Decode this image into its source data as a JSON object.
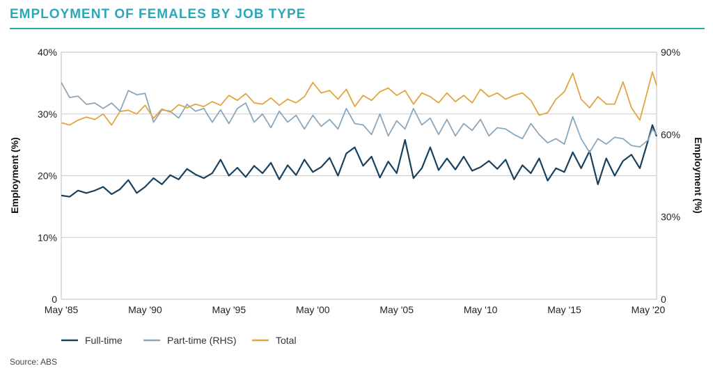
{
  "header": {
    "title": "EMPLOYMENT OF FEMALES BY JOB TYPE"
  },
  "footer": {
    "source": "Source: ABS"
  },
  "colors": {
    "full_time": "#17415e",
    "part_time": "#8aa7bc",
    "total": "#e1a53f",
    "grid": "#cccccc",
    "accent": "#2aa8b8"
  },
  "chart_data": {
    "type": "line",
    "ylabel_left": "Employment (%)",
    "ylabel_right": "Employment (%)",
    "left_ticks": [
      "0",
      "10%",
      "20%",
      "30%",
      "40%"
    ],
    "right_ticks": [
      "0",
      "30%",
      "60%",
      "90%"
    ],
    "x_ticks": [
      {
        "label": "May '85",
        "year": 1985
      },
      {
        "label": "May '90",
        "year": 1990
      },
      {
        "label": "May '95",
        "year": 1995
      },
      {
        "label": "May '00",
        "year": 2000
      },
      {
        "label": "May '05",
        "year": 2005
      },
      {
        "label": "May '10",
        "year": 2010
      },
      {
        "label": "May '15",
        "year": 2015
      },
      {
        "label": "May '20",
        "year": 2020
      }
    ],
    "ylim_left": [
      0,
      40
    ],
    "ylim_right": [
      0,
      90
    ],
    "xlim": [
      1985,
      2020.5
    ],
    "series": [
      {
        "name": "Full-time",
        "axis": "left",
        "points": [
          [
            1985,
            16.8
          ],
          [
            1985.5,
            16.6
          ],
          [
            1986,
            17.6
          ],
          [
            1986.5,
            17.2
          ],
          [
            1987,
            17.6
          ],
          [
            1987.5,
            18.2
          ],
          [
            1988,
            17.0
          ],
          [
            1988.5,
            17.8
          ],
          [
            1989,
            19.3
          ],
          [
            1989.5,
            17.2
          ],
          [
            1990,
            18.2
          ],
          [
            1990.5,
            19.6
          ],
          [
            1991,
            18.6
          ],
          [
            1991.5,
            20.1
          ],
          [
            1992,
            19.4
          ],
          [
            1992.5,
            21.1
          ],
          [
            1993,
            20.2
          ],
          [
            1993.5,
            19.6
          ],
          [
            1994,
            20.4
          ],
          [
            1994.5,
            22.6
          ],
          [
            1995,
            20.0
          ],
          [
            1995.5,
            21.3
          ],
          [
            1996,
            19.8
          ],
          [
            1996.5,
            21.6
          ],
          [
            1997,
            20.4
          ],
          [
            1997.5,
            22.1
          ],
          [
            1998,
            19.4
          ],
          [
            1998.5,
            21.7
          ],
          [
            1999,
            20.1
          ],
          [
            1999.5,
            22.6
          ],
          [
            2000,
            20.6
          ],
          [
            2000.5,
            21.4
          ],
          [
            2001,
            22.9
          ],
          [
            2001.5,
            20.0
          ],
          [
            2002,
            23.6
          ],
          [
            2002.5,
            24.6
          ],
          [
            2003,
            21.6
          ],
          [
            2003.5,
            23.1
          ],
          [
            2004,
            19.7
          ],
          [
            2004.5,
            22.3
          ],
          [
            2005,
            20.4
          ],
          [
            2005.5,
            25.8
          ],
          [
            2006,
            19.6
          ],
          [
            2006.5,
            21.2
          ],
          [
            2007,
            24.6
          ],
          [
            2007.5,
            20.9
          ],
          [
            2008,
            22.8
          ],
          [
            2008.5,
            21.0
          ],
          [
            2009,
            23.1
          ],
          [
            2009.5,
            20.8
          ],
          [
            2010,
            21.4
          ],
          [
            2010.5,
            22.4
          ],
          [
            2011,
            21.1
          ],
          [
            2011.5,
            22.6
          ],
          [
            2012,
            19.4
          ],
          [
            2012.5,
            21.7
          ],
          [
            2013,
            20.4
          ],
          [
            2013.5,
            22.8
          ],
          [
            2014,
            19.2
          ],
          [
            2014.5,
            21.2
          ],
          [
            2015,
            20.6
          ],
          [
            2015.5,
            23.8
          ],
          [
            2016,
            21.2
          ],
          [
            2016.5,
            24.0
          ],
          [
            2017,
            18.6
          ],
          [
            2017.5,
            22.8
          ],
          [
            2018,
            20.0
          ],
          [
            2018.5,
            22.4
          ],
          [
            2019,
            23.4
          ],
          [
            2019.5,
            21.2
          ],
          [
            2020,
            25.8
          ],
          [
            2020.25,
            28.2
          ],
          [
            2020.5,
            26.4
          ]
        ]
      },
      {
        "name": "Part-time (RHS)",
        "axis": "right",
        "points": [
          [
            1985,
            79.0
          ],
          [
            1985.5,
            73.5
          ],
          [
            1986,
            74.0
          ],
          [
            1986.5,
            71.0
          ],
          [
            1987,
            71.5
          ],
          [
            1987.5,
            69.5
          ],
          [
            1988,
            71.5
          ],
          [
            1988.5,
            68.5
          ],
          [
            1989,
            76.0
          ],
          [
            1989.5,
            74.5
          ],
          [
            1990,
            75.0
          ],
          [
            1990.5,
            64.5
          ],
          [
            1991,
            69.0
          ],
          [
            1991.5,
            68.5
          ],
          [
            1992,
            66.0
          ],
          [
            1992.5,
            71.0
          ],
          [
            1993,
            68.5
          ],
          [
            1993.5,
            69.5
          ],
          [
            1994,
            64.5
          ],
          [
            1994.5,
            69.0
          ],
          [
            1995,
            64.0
          ],
          [
            1995.5,
            69.5
          ],
          [
            1996,
            71.5
          ],
          [
            1996.5,
            64.5
          ],
          [
            1997,
            67.5
          ],
          [
            1997.5,
            62.5
          ],
          [
            1998,
            68.5
          ],
          [
            1998.5,
            64.5
          ],
          [
            1999,
            67.0
          ],
          [
            1999.5,
            62.0
          ],
          [
            2000,
            67.0
          ],
          [
            2000.5,
            63.0
          ],
          [
            2001,
            65.5
          ],
          [
            2001.5,
            62.0
          ],
          [
            2002,
            69.5
          ],
          [
            2002.5,
            64.0
          ],
          [
            2003,
            63.5
          ],
          [
            2003.5,
            60.0
          ],
          [
            2004,
            67.5
          ],
          [
            2004.5,
            59.5
          ],
          [
            2005,
            65.0
          ],
          [
            2005.5,
            62.0
          ],
          [
            2006,
            69.5
          ],
          [
            2006.5,
            63.5
          ],
          [
            2007,
            66.0
          ],
          [
            2007.5,
            60.0
          ],
          [
            2008,
            65.5
          ],
          [
            2008.5,
            59.5
          ],
          [
            2009,
            64.0
          ],
          [
            2009.5,
            61.5
          ],
          [
            2010,
            65.5
          ],
          [
            2010.5,
            59.5
          ],
          [
            2011,
            62.5
          ],
          [
            2011.5,
            62.0
          ],
          [
            2012,
            60.0
          ],
          [
            2012.5,
            58.5
          ],
          [
            2013,
            64.0
          ],
          [
            2013.5,
            60.0
          ],
          [
            2014,
            57.0
          ],
          [
            2014.5,
            58.5
          ],
          [
            2015,
            56.5
          ],
          [
            2015.5,
            66.5
          ],
          [
            2016,
            58.5
          ],
          [
            2016.5,
            53.5
          ],
          [
            2017,
            58.5
          ],
          [
            2017.5,
            56.5
          ],
          [
            2018,
            59.0
          ],
          [
            2018.5,
            58.5
          ],
          [
            2019,
            56.0
          ],
          [
            2019.5,
            55.5
          ],
          [
            2020,
            58.0
          ],
          [
            2020.25,
            62.0
          ],
          [
            2020.5,
            60.0
          ]
        ]
      },
      {
        "name": "Total",
        "axis": "left",
        "points": [
          [
            1985,
            28.6
          ],
          [
            1985.5,
            28.2
          ],
          [
            1986,
            29.0
          ],
          [
            1986.5,
            29.5
          ],
          [
            1987,
            29.1
          ],
          [
            1987.5,
            30.0
          ],
          [
            1988,
            28.2
          ],
          [
            1988.5,
            30.4
          ],
          [
            1989,
            30.6
          ],
          [
            1989.5,
            30.0
          ],
          [
            1990,
            31.4
          ],
          [
            1990.5,
            29.3
          ],
          [
            1991,
            30.8
          ],
          [
            1991.5,
            30.3
          ],
          [
            1992,
            31.5
          ],
          [
            1992.5,
            31.0
          ],
          [
            1993,
            31.6
          ],
          [
            1993.5,
            31.2
          ],
          [
            1994,
            32.0
          ],
          [
            1994.5,
            31.4
          ],
          [
            1995,
            33.0
          ],
          [
            1995.5,
            32.2
          ],
          [
            1996,
            33.3
          ],
          [
            1996.5,
            31.8
          ],
          [
            1997,
            31.6
          ],
          [
            1997.5,
            32.6
          ],
          [
            1998,
            31.4
          ],
          [
            1998.5,
            32.4
          ],
          [
            1999,
            31.8
          ],
          [
            1999.5,
            32.8
          ],
          [
            2000,
            35.1
          ],
          [
            2000.5,
            33.4
          ],
          [
            2001,
            33.8
          ],
          [
            2001.5,
            32.4
          ],
          [
            2002,
            34.0
          ],
          [
            2002.5,
            31.2
          ],
          [
            2003,
            33.0
          ],
          [
            2003.5,
            32.2
          ],
          [
            2004,
            33.6
          ],
          [
            2004.5,
            34.2
          ],
          [
            2005,
            33.0
          ],
          [
            2005.5,
            33.8
          ],
          [
            2006,
            31.6
          ],
          [
            2006.5,
            33.4
          ],
          [
            2007,
            32.8
          ],
          [
            2007.5,
            31.8
          ],
          [
            2008,
            33.4
          ],
          [
            2008.5,
            32.0
          ],
          [
            2009,
            33.0
          ],
          [
            2009.5,
            31.8
          ],
          [
            2010,
            34.0
          ],
          [
            2010.5,
            32.8
          ],
          [
            2011,
            33.4
          ],
          [
            2011.5,
            32.4
          ],
          [
            2012,
            33.0
          ],
          [
            2012.5,
            33.4
          ],
          [
            2013,
            32.2
          ],
          [
            2013.5,
            29.8
          ],
          [
            2014,
            30.2
          ],
          [
            2014.5,
            32.4
          ],
          [
            2015,
            33.6
          ],
          [
            2015.5,
            36.6
          ],
          [
            2016,
            32.4
          ],
          [
            2016.5,
            31.0
          ],
          [
            2017,
            32.8
          ],
          [
            2017.5,
            31.6
          ],
          [
            2018,
            31.6
          ],
          [
            2018.5,
            35.2
          ],
          [
            2019,
            31.0
          ],
          [
            2019.5,
            29.0
          ],
          [
            2020,
            34.2
          ],
          [
            2020.25,
            36.8
          ],
          [
            2020.5,
            34.6
          ]
        ]
      }
    ],
    "legend": {
      "placement": "bottom-left",
      "entries": [
        "Full-time",
        "Part-time (RHS)",
        "Total"
      ]
    },
    "grid": true
  }
}
